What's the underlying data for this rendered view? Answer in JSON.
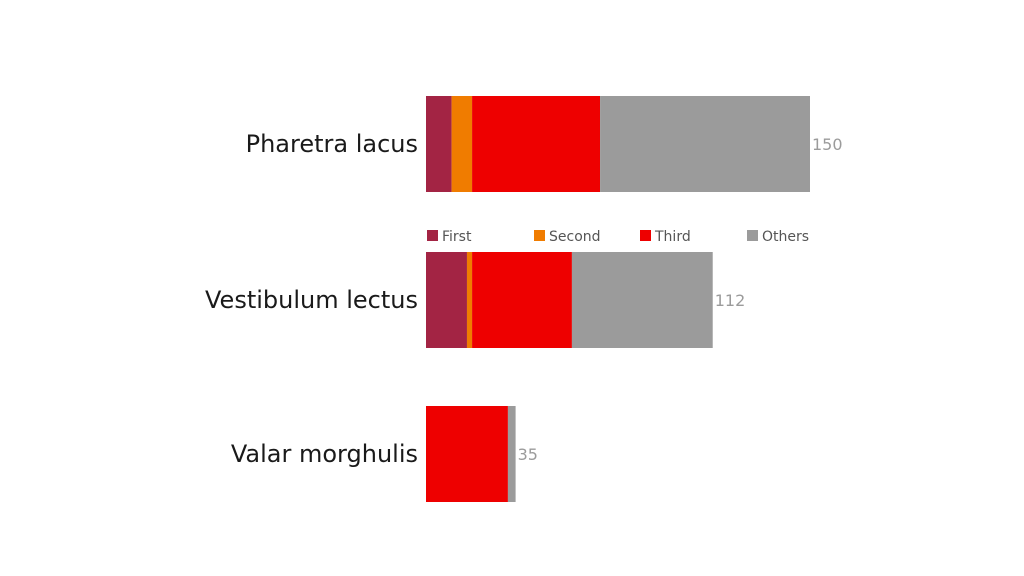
{
  "chart_data": {
    "type": "bar",
    "orientation": "horizontal",
    "stacked": true,
    "categories": [
      "Pharetra lacus",
      "Vestibulum lectus",
      "Valar morghulis"
    ],
    "series": [
      {
        "name": "First",
        "color": "#a32444",
        "values": [
          10,
          16,
          0
        ]
      },
      {
        "name": "Second",
        "color": "#f07c00",
        "values": [
          8,
          2,
          0
        ]
      },
      {
        "name": "Third",
        "color": "#ee0000",
        "values": [
          50,
          39,
          32
        ]
      },
      {
        "name": "Others",
        "color": "#9b9b9b",
        "values": [
          82,
          55,
          3
        ]
      }
    ],
    "totals": [
      "150",
      "112",
      "35"
    ],
    "legend": {
      "position": "between-first-and-second-bar",
      "entries": [
        "First",
        "Second",
        "Third",
        "Others"
      ]
    },
    "title": "",
    "xlabel": "",
    "ylabel": "",
    "xlim": [
      0,
      150
    ],
    "grid": false
  }
}
